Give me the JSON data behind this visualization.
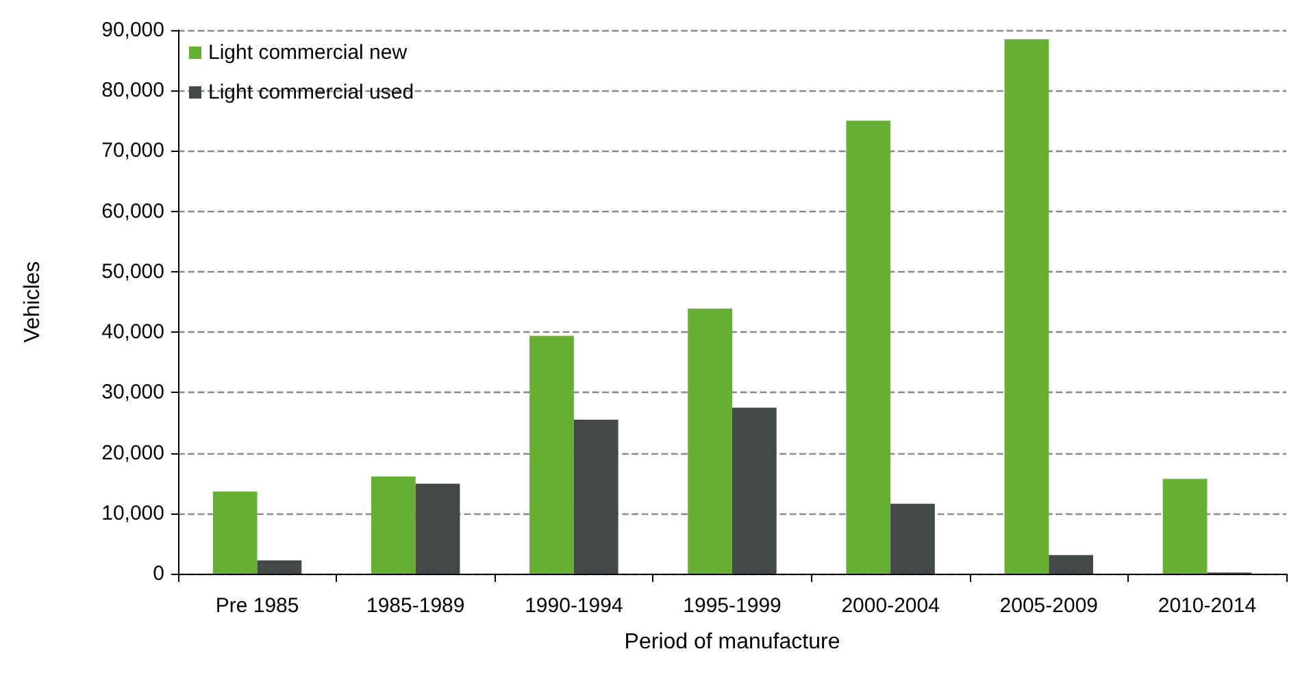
{
  "chart_data": {
    "type": "bar",
    "xlabel": "Period of manufacture",
    "ylabel": "Vehicles",
    "categories": [
      "Pre 1985",
      "1985-1989",
      "1990-1994",
      "1995-1999",
      "2000-2004",
      "2005-2009",
      "2010-2014"
    ],
    "series": [
      {
        "name": "Light commercial new",
        "color": "#67ae34",
        "values": [
          13600,
          16100,
          39400,
          43900,
          75000,
          88500,
          15700
        ]
      },
      {
        "name": "Light commercial used",
        "color": "#434848",
        "values": [
          2200,
          14900,
          25500,
          27500,
          11600,
          3100,
          200
        ]
      }
    ],
    "ylim": [
      0,
      90000
    ],
    "yticks": [
      0,
      {
        "value": 10000,
        "label": "10,000"
      },
      {
        "value": 20000,
        "label": "20,000"
      },
      {
        "value": 30000,
        "label": "30,000"
      },
      {
        "value": 40000,
        "label": "40,000"
      },
      {
        "value": 50000,
        "label": "50,000"
      },
      {
        "value": 60000,
        "label": "60,000"
      },
      {
        "value": 70000,
        "label": "70,000"
      },
      {
        "value": 80000,
        "label": "80,000"
      },
      {
        "value": 90000,
        "label": "90,000"
      }
    ],
    "grid": "y",
    "legend": "top left"
  }
}
